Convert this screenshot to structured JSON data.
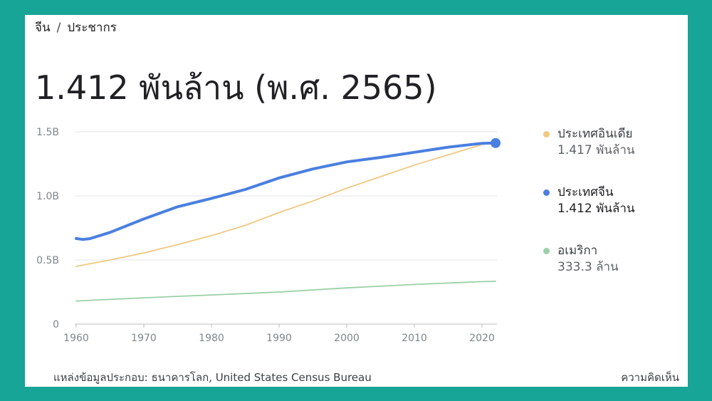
{
  "breadcrumb": {
    "country": "จีน",
    "separator": "/",
    "topic": "ประชากร"
  },
  "headline": "1.412 พันล้าน (พ.ศ. 2565)",
  "colors": {
    "india": "#f0c87f",
    "china": "#4a7fe0",
    "usa": "#9ad0a6",
    "grid": "#e6e6e6",
    "tick": "#80868b"
  },
  "chart_data": {
    "type": "line",
    "ylim": [
      0,
      1.5
    ],
    "xlim": [
      1960,
      2022
    ],
    "y_ticks": [
      0,
      0.5,
      1.0,
      1.5
    ],
    "y_tick_labels": [
      "0",
      "0.5B",
      "1.0B",
      "1.5B"
    ],
    "x_ticks": [
      1960,
      1970,
      1980,
      1990,
      2000,
      2010,
      2020
    ],
    "x_tick_labels": [
      "1960",
      "1970",
      "1980",
      "1990",
      "2000",
      "2010",
      "2020"
    ],
    "grid": true,
    "legend_position": "right",
    "series": [
      {
        "name": "ประเทศอินเดีย",
        "value_label": "1.417 พันล้าน",
        "color_key": "india",
        "x": [
          1960,
          1965,
          1970,
          1975,
          1980,
          1985,
          1990,
          1995,
          2000,
          2005,
          2010,
          2015,
          2020,
          2022
        ],
        "y": [
          0.45,
          0.5,
          0.555,
          0.62,
          0.69,
          0.77,
          0.87,
          0.96,
          1.06,
          1.15,
          1.24,
          1.32,
          1.4,
          1.417
        ]
      },
      {
        "name": "ประเทศจีน",
        "value_label": "1.412 พันล้าน",
        "color_key": "china",
        "active": true,
        "x": [
          1960,
          1961,
          1962,
          1965,
          1970,
          1975,
          1980,
          1985,
          1990,
          1995,
          2000,
          2005,
          2010,
          2015,
          2020,
          2022
        ],
        "y": [
          0.667,
          0.66,
          0.666,
          0.715,
          0.82,
          0.915,
          0.98,
          1.05,
          1.14,
          1.21,
          1.265,
          1.3,
          1.34,
          1.38,
          1.41,
          1.412
        ]
      },
      {
        "name": "อเมริกา",
        "value_label": "333.3 ล้าน",
        "color_key": "usa",
        "x": [
          1960,
          1970,
          1980,
          1990,
          2000,
          2010,
          2020,
          2022
        ],
        "y": [
          0.18,
          0.205,
          0.227,
          0.25,
          0.282,
          0.309,
          0.331,
          0.3333
        ]
      }
    ]
  },
  "footer": {
    "source": "แหล่งข้อมูลประกอบ: ธนาคารโลก, United States Census Bureau",
    "feedback": "ความคิดเห็น"
  }
}
